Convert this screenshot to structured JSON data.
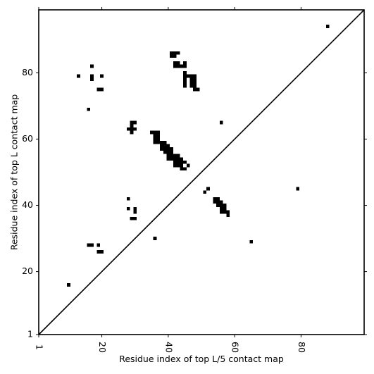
{
  "chart_data": {
    "type": "heatmap",
    "xlabel": "Residue index of top L/5 contact map",
    "ylabel": "Residue index of top L contact map",
    "xlim": [
      1,
      99
    ],
    "ylim": [
      1,
      99
    ],
    "x_ticks": [
      1,
      20,
      40,
      60,
      80
    ],
    "y_ticks": [
      1,
      20,
      40,
      60,
      80
    ],
    "x_tick_labels": [
      "1",
      "20",
      "40",
      "60",
      "80"
    ],
    "y_tick_labels": [
      "1",
      "20",
      "40",
      "60",
      "80"
    ],
    "diagonal": true,
    "cell_color": "#000000",
    "background_color": "#ffffff",
    "upper_triangle_cells": [
      [
        88,
        94
      ],
      [
        13,
        79
      ],
      [
        17,
        82
      ],
      [
        17,
        79
      ],
      [
        17,
        78
      ],
      [
        20,
        79
      ],
      [
        19,
        75
      ],
      [
        20,
        75
      ],
      [
        16,
        69
      ],
      [
        41,
        86
      ],
      [
        42,
        86
      ],
      [
        43,
        86
      ],
      [
        41,
        85
      ],
      [
        42,
        85
      ],
      [
        42,
        83
      ],
      [
        43,
        83
      ],
      [
        42,
        82
      ],
      [
        43,
        82
      ],
      [
        45,
        83
      ],
      [
        44,
        82
      ],
      [
        45,
        82
      ],
      [
        45,
        80
      ],
      [
        45,
        79
      ],
      [
        45,
        78
      ],
      [
        45,
        77
      ],
      [
        45,
        76
      ],
      [
        46,
        79
      ],
      [
        47,
        79
      ],
      [
        48,
        79
      ],
      [
        47,
        78
      ],
      [
        48,
        78
      ],
      [
        47,
        77
      ],
      [
        48,
        77
      ],
      [
        47,
        76
      ],
      [
        48,
        76
      ],
      [
        48,
        75
      ],
      [
        49,
        75
      ],
      [
        56,
        65
      ],
      [
        29,
        65
      ],
      [
        30,
        65
      ],
      [
        29,
        64
      ],
      [
        29,
        63
      ],
      [
        30,
        63
      ],
      [
        28,
        63
      ],
      [
        29,
        62
      ],
      [
        35,
        62
      ],
      [
        36,
        62
      ],
      [
        37,
        62
      ],
      [
        36,
        61
      ],
      [
        37,
        61
      ],
      [
        36,
        60
      ],
      [
        37,
        60
      ],
      [
        36,
        59
      ],
      [
        37,
        59
      ],
      [
        38,
        59
      ],
      [
        39,
        59
      ],
      [
        38,
        58
      ],
      [
        39,
        58
      ],
      [
        40,
        58
      ],
      [
        38,
        57
      ],
      [
        39,
        57
      ],
      [
        40,
        57
      ],
      [
        41,
        57
      ],
      [
        39,
        56
      ],
      [
        40,
        56
      ],
      [
        41,
        56
      ],
      [
        40,
        55
      ],
      [
        41,
        55
      ],
      [
        42,
        55
      ],
      [
        43,
        55
      ],
      [
        40,
        54
      ],
      [
        41,
        54
      ],
      [
        42,
        54
      ],
      [
        43,
        54
      ],
      [
        44,
        54
      ],
      [
        42,
        53
      ],
      [
        43,
        53
      ],
      [
        44,
        53
      ],
      [
        45,
        53
      ],
      [
        42,
        52
      ],
      [
        43,
        52
      ],
      [
        44,
        52
      ],
      [
        46,
        52
      ],
      [
        44,
        51
      ],
      [
        45,
        51
      ]
    ],
    "lower_triangle_cells": [
      [
        52,
        45
      ],
      [
        51,
        44
      ],
      [
        79,
        45
      ],
      [
        54,
        42
      ],
      [
        55,
        42
      ],
      [
        54,
        41
      ],
      [
        55,
        41
      ],
      [
        56,
        41
      ],
      [
        55,
        40
      ],
      [
        56,
        40
      ],
      [
        57,
        40
      ],
      [
        56,
        39
      ],
      [
        57,
        39
      ],
      [
        56,
        38
      ],
      [
        57,
        38
      ],
      [
        58,
        38
      ],
      [
        58,
        37
      ],
      [
        28,
        42
      ],
      [
        28,
        39
      ],
      [
        30,
        39
      ],
      [
        30,
        38
      ],
      [
        29,
        36
      ],
      [
        30,
        36
      ],
      [
        36,
        30
      ],
      [
        16,
        28
      ],
      [
        17,
        28
      ],
      [
        19,
        28
      ],
      [
        19,
        26
      ],
      [
        20,
        26
      ],
      [
        10,
        16
      ],
      [
        65,
        29
      ]
    ]
  }
}
